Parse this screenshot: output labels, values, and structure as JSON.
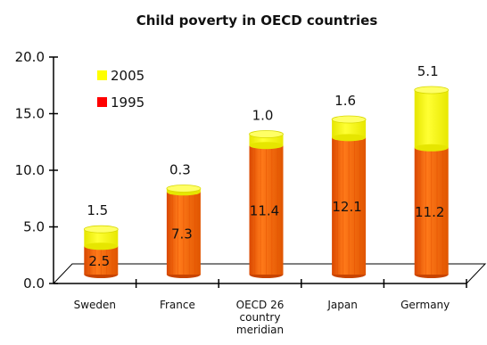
{
  "chart_data": {
    "type": "bar",
    "stacked": true,
    "title": "Child poverty in OECD countries",
    "xlabel": "",
    "ylabel": "",
    "ylim": [
      0,
      20
    ],
    "yticks": [
      "0.0",
      "5.0",
      "10.0",
      "15.0",
      "20.0"
    ],
    "categories": [
      [
        "Sweden"
      ],
      [
        "France"
      ],
      [
        "OECD 26",
        "country",
        "meridian"
      ],
      [
        "Japan"
      ],
      [
        "Germany"
      ]
    ],
    "series": [
      {
        "name": "1995",
        "values": [
          2.5,
          7.3,
          11.4,
          12.1,
          11.2
        ],
        "labels": [
          "2.5",
          "7.3",
          "11.4",
          "12.1",
          "11.2"
        ],
        "color": "#f05a00"
      },
      {
        "name": "2005",
        "values": [
          1.5,
          0.3,
          1.0,
          1.6,
          5.1
        ],
        "labels": [
          "1.5",
          "0.3",
          "1.0",
          "1.6",
          "5.1"
        ],
        "color": "#ffff00"
      }
    ],
    "legend": {
      "position": "top-left",
      "entries": [
        "2005",
        "1995"
      ],
      "colors": [
        "#ffff00",
        "#ff0000"
      ]
    },
    "grid": false
  }
}
